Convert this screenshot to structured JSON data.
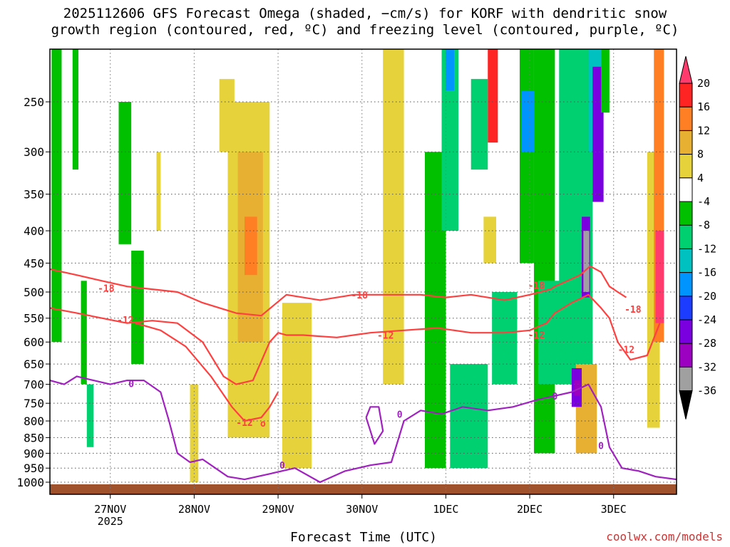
{
  "title_line1": "2025112606 GFS Forecast Omega (shaded, −cm/s) for KORF with dendritic snow",
  "title_line2": "growth region (contoured, red, ºC) and freezing level (contoured, purple, ºC)",
  "xlabel": "Forecast Time (UTC)",
  "credit": "coolwx.com/models",
  "chart_data": {
    "type": "heatmap",
    "title": "2025112606 GFS Forecast Omega (shaded, −cm/s) for KORF with dendritic snow growth region (contoured, red, ºC) and freezing level (contoured, purple, ºC)",
    "xlabel": "Forecast Time (UTC)",
    "ylabel": "",
    "xlim": [
      0.28,
      7.75
    ],
    "ylim": [
      1020,
      200
    ],
    "y_axis_scale": "pressure",
    "grid": true,
    "x_ticks": [
      {
        "x": 1,
        "label": "27NOV",
        "sub": "2025"
      },
      {
        "x": 2,
        "label": "28NOV",
        "sub": ""
      },
      {
        "x": 3,
        "label": "29NOV",
        "sub": ""
      },
      {
        "x": 4,
        "label": "30NOV",
        "sub": ""
      },
      {
        "x": 5,
        "label": "1DEC",
        "sub": ""
      },
      {
        "x": 6,
        "label": "2DEC",
        "sub": ""
      },
      {
        "x": 7,
        "label": "3DEC",
        "sub": ""
      }
    ],
    "y_ticks": [
      250,
      300,
      350,
      400,
      450,
      500,
      550,
      600,
      650,
      700,
      750,
      800,
      850,
      900,
      950,
      1000
    ],
    "colorbar": {
      "levels": [
        20,
        16,
        12,
        8,
        4,
        -4,
        -8,
        -12,
        -16,
        -20,
        -24,
        -28,
        -32,
        -36
      ],
      "colors": [
        "#ff3a6c",
        "#ff2424",
        "#ff7f24",
        "#e8b032",
        "#e6d23a",
        "#ffffff",
        "#00c000",
        "#00d070",
        "#00c0c0",
        "#0094ff",
        "#1c3cff",
        "#7a00e0",
        "#9c00c0",
        "#a0a0a0",
        "#000000"
      ]
    },
    "shaded_regions": [
      {
        "x0": 0.3,
        "x1": 0.42,
        "p0": 200,
        "p1": 600,
        "value": -8
      },
      {
        "x0": 0.55,
        "x1": 0.62,
        "p0": 200,
        "p1": 320,
        "value": -8
      },
      {
        "x0": 0.65,
        "x1": 0.72,
        "p0": 480,
        "p1": 700,
        "value": -8
      },
      {
        "x0": 0.72,
        "x1": 0.8,
        "p0": 700,
        "p1": 880,
        "value": -12
      },
      {
        "x0": 1.1,
        "x1": 1.25,
        "p0": 250,
        "p1": 420,
        "value": -8
      },
      {
        "x0": 1.25,
        "x1": 1.4,
        "p0": 430,
        "p1": 650,
        "value": -8
      },
      {
        "x0": 1.55,
        "x1": 1.6,
        "p0": 300,
        "p1": 400,
        "value": 6
      },
      {
        "x0": 1.95,
        "x1": 2.05,
        "p0": 700,
        "p1": 1000,
        "value": 6
      },
      {
        "x0": 2.3,
        "x1": 2.48,
        "p0": 230,
        "p1": 300,
        "value": 6
      },
      {
        "x0": 2.4,
        "x1": 2.9,
        "p0": 250,
        "p1": 850,
        "value": 6
      },
      {
        "x0": 2.52,
        "x1": 2.82,
        "p0": 300,
        "p1": 600,
        "value": 10
      },
      {
        "x0": 2.6,
        "x1": 2.75,
        "p0": 380,
        "p1": 470,
        "value": 12
      },
      {
        "x0": 3.05,
        "x1": 3.4,
        "p0": 520,
        "p1": 950,
        "value": 6
      },
      {
        "x0": 4.25,
        "x1": 4.5,
        "p0": 200,
        "p1": 700,
        "value": 6
      },
      {
        "x0": 4.75,
        "x1": 5.0,
        "p0": 300,
        "p1": 950,
        "value": -8
      },
      {
        "x0": 4.95,
        "x1": 5.15,
        "p0": 200,
        "p1": 400,
        "value": -12
      },
      {
        "x0": 5.0,
        "x1": 5.1,
        "p0": 200,
        "p1": 240,
        "value": -20
      },
      {
        "x0": 5.05,
        "x1": 5.5,
        "p0": 650,
        "p1": 950,
        "value": -12
      },
      {
        "x0": 5.5,
        "x1": 5.62,
        "p0": 200,
        "p1": 290,
        "value": 16
      },
      {
        "x0": 5.3,
        "x1": 5.5,
        "p0": 230,
        "p1": 320,
        "value": -12
      },
      {
        "x0": 5.45,
        "x1": 5.6,
        "p0": 380,
        "p1": 450,
        "value": 6
      },
      {
        "x0": 5.55,
        "x1": 5.85,
        "p0": 500,
        "p1": 700,
        "value": -12
      },
      {
        "x0": 5.88,
        "x1": 6.05,
        "p0": 200,
        "p1": 450,
        "value": -8
      },
      {
        "x0": 5.9,
        "x1": 6.05,
        "p0": 240,
        "p1": 300,
        "value": -20
      },
      {
        "x0": 6.05,
        "x1": 6.3,
        "p0": 200,
        "p1": 900,
        "value": -8
      },
      {
        "x0": 6.1,
        "x1": 6.4,
        "p0": 480,
        "p1": 700,
        "value": -12
      },
      {
        "x0": 6.35,
        "x1": 6.75,
        "p0": 200,
        "p1": 700,
        "value": -12
      },
      {
        "x0": 6.55,
        "x1": 6.8,
        "p0": 650,
        "p1": 900,
        "value": 10
      },
      {
        "x0": 6.7,
        "x1": 6.85,
        "p0": 200,
        "p1": 300,
        "value": -16
      },
      {
        "x0": 6.75,
        "x1": 6.88,
        "p0": 220,
        "p1": 360,
        "value": -28
      },
      {
        "x0": 6.5,
        "x1": 6.62,
        "p0": 660,
        "p1": 760,
        "value": -28
      },
      {
        "x0": 6.53,
        "x1": 6.6,
        "p0": 690,
        "p1": 730,
        "value": -32
      },
      {
        "x0": 6.62,
        "x1": 6.72,
        "p0": 380,
        "p1": 510,
        "value": -28
      },
      {
        "x0": 6.64,
        "x1": 6.71,
        "p0": 400,
        "p1": 500,
        "value": -36
      },
      {
        "x0": 6.85,
        "x1": 6.95,
        "p0": 200,
        "p1": 260,
        "value": -8
      },
      {
        "x0": 7.4,
        "x1": 7.55,
        "p0": 300,
        "p1": 820,
        "value": 6
      },
      {
        "x0": 7.48,
        "x1": 7.6,
        "p0": 200,
        "p1": 600,
        "value": 14
      },
      {
        "x0": 7.5,
        "x1": 7.6,
        "p0": 400,
        "p1": 560,
        "value": 20
      }
    ],
    "series": [
      {
        "name": "-18",
        "color": "#ff4040",
        "x": [
          0.28,
          0.6,
          0.9,
          1.2,
          1.5,
          1.8,
          2.1,
          2.5,
          2.8,
          3.1,
          3.5,
          3.9,
          4.3,
          4.7,
          5.0,
          5.3,
          5.7,
          6.0,
          6.25,
          6.3,
          6.45,
          6.6,
          6.72,
          6.85,
          6.95,
          7.05,
          7.15
        ],
        "y": [
          460,
          470,
          480,
          490,
          495,
          500,
          520,
          540,
          545,
          505,
          515,
          505,
          505,
          505,
          510,
          505,
          515,
          505,
          495,
          490,
          480,
          470,
          455,
          465,
          490,
          500,
          510
        ]
      },
      {
        "name": "-12",
        "color": "#ff4040",
        "x": [
          0.28,
          0.6,
          0.9,
          1.2,
          1.5,
          1.8,
          2.1,
          2.35,
          2.5,
          2.7,
          2.9,
          3.0,
          3.1,
          3.3,
          3.7,
          4.1,
          4.5,
          4.9,
          5.3,
          5.7,
          6.0,
          6.2,
          6.3,
          6.5,
          6.7,
          6.85,
          6.95,
          7.05,
          7.2,
          7.4,
          7.55
        ],
        "y": [
          530,
          540,
          550,
          560,
          555,
          560,
          600,
          680,
          700,
          690,
          600,
          580,
          585,
          585,
          590,
          580,
          575,
          570,
          580,
          580,
          575,
          560,
          540,
          520,
          505,
          530,
          550,
          600,
          640,
          630,
          560
        ]
      },
      {
        "name": "-12 (lower)",
        "color": "#ff4040",
        "x": [
          1.3,
          1.6,
          1.9,
          2.2,
          2.45,
          2.6,
          2.8,
          2.9,
          3.0
        ],
        "y": [
          560,
          575,
          610,
          680,
          760,
          800,
          790,
          760,
          720
        ]
      },
      {
        "name": "0",
        "color": "#a020c0",
        "x": [
          0.28,
          0.45,
          0.6,
          0.8,
          1.0,
          1.2,
          1.4,
          1.6,
          1.7,
          1.8,
          1.95,
          2.1,
          2.4,
          2.6,
          2.9,
          3.2,
          3.5,
          3.8,
          4.1,
          4.35,
          4.5,
          4.7,
          4.95,
          5.2,
          5.5,
          5.8,
          6.1,
          6.3,
          6.5,
          6.7,
          6.85,
          6.95,
          7.1,
          7.3,
          7.5,
          7.75
        ],
        "y": [
          690,
          700,
          680,
          690,
          700,
          690,
          690,
          720,
          800,
          900,
          930,
          920,
          980,
          990,
          970,
          950,
          1000,
          960,
          940,
          930,
          800,
          770,
          780,
          760,
          770,
          760,
          740,
          730,
          720,
          700,
          760,
          880,
          950,
          960,
          980,
          990
        ]
      },
      {
        "name": "0 (closed)",
        "color": "#a020c0",
        "x": [
          4.05,
          4.1,
          4.2,
          4.25,
          4.15,
          4.05
        ],
        "y": [
          790,
          760,
          760,
          830,
          870,
          790
        ]
      }
    ],
    "contour_labels": [
      {
        "text": "-18",
        "x": 0.95,
        "p": 493,
        "color": "#ff4040"
      },
      {
        "text": "-12",
        "x": 1.18,
        "p": 553,
        "color": "#ff4040"
      },
      {
        "text": "-18",
        "x": 3.97,
        "p": 505,
        "color": "#ff4040"
      },
      {
        "text": "-12",
        "x": 4.28,
        "p": 585,
        "color": "#ff4040"
      },
      {
        "text": "-18",
        "x": 6.08,
        "p": 488,
        "color": "#ff4040"
      },
      {
        "text": "-12",
        "x": 6.08,
        "p": 584,
        "color": "#ff4040"
      },
      {
        "text": "-18",
        "x": 7.23,
        "p": 532,
        "color": "#ff4040"
      },
      {
        "text": "-12",
        "x": 7.15,
        "p": 616,
        "color": "#ff4040"
      },
      {
        "text": "-12",
        "x": 2.6,
        "p": 804,
        "color": "#ff4040"
      },
      {
        "text": "o",
        "x": 2.82,
        "p": 806,
        "color": "#ff4040"
      },
      {
        "text": "0",
        "x": 1.25,
        "p": 698,
        "color": "#a020c0"
      },
      {
        "text": "0",
        "x": 3.05,
        "p": 940,
        "color": "#a020c0"
      },
      {
        "text": "0",
        "x": 4.45,
        "p": 780,
        "color": "#a020c0"
      },
      {
        "text": "0",
        "x": 6.3,
        "p": 730,
        "color": "#a020c0"
      },
      {
        "text": "0",
        "x": 6.85,
        "p": 875,
        "color": "#a020c0"
      }
    ]
  }
}
